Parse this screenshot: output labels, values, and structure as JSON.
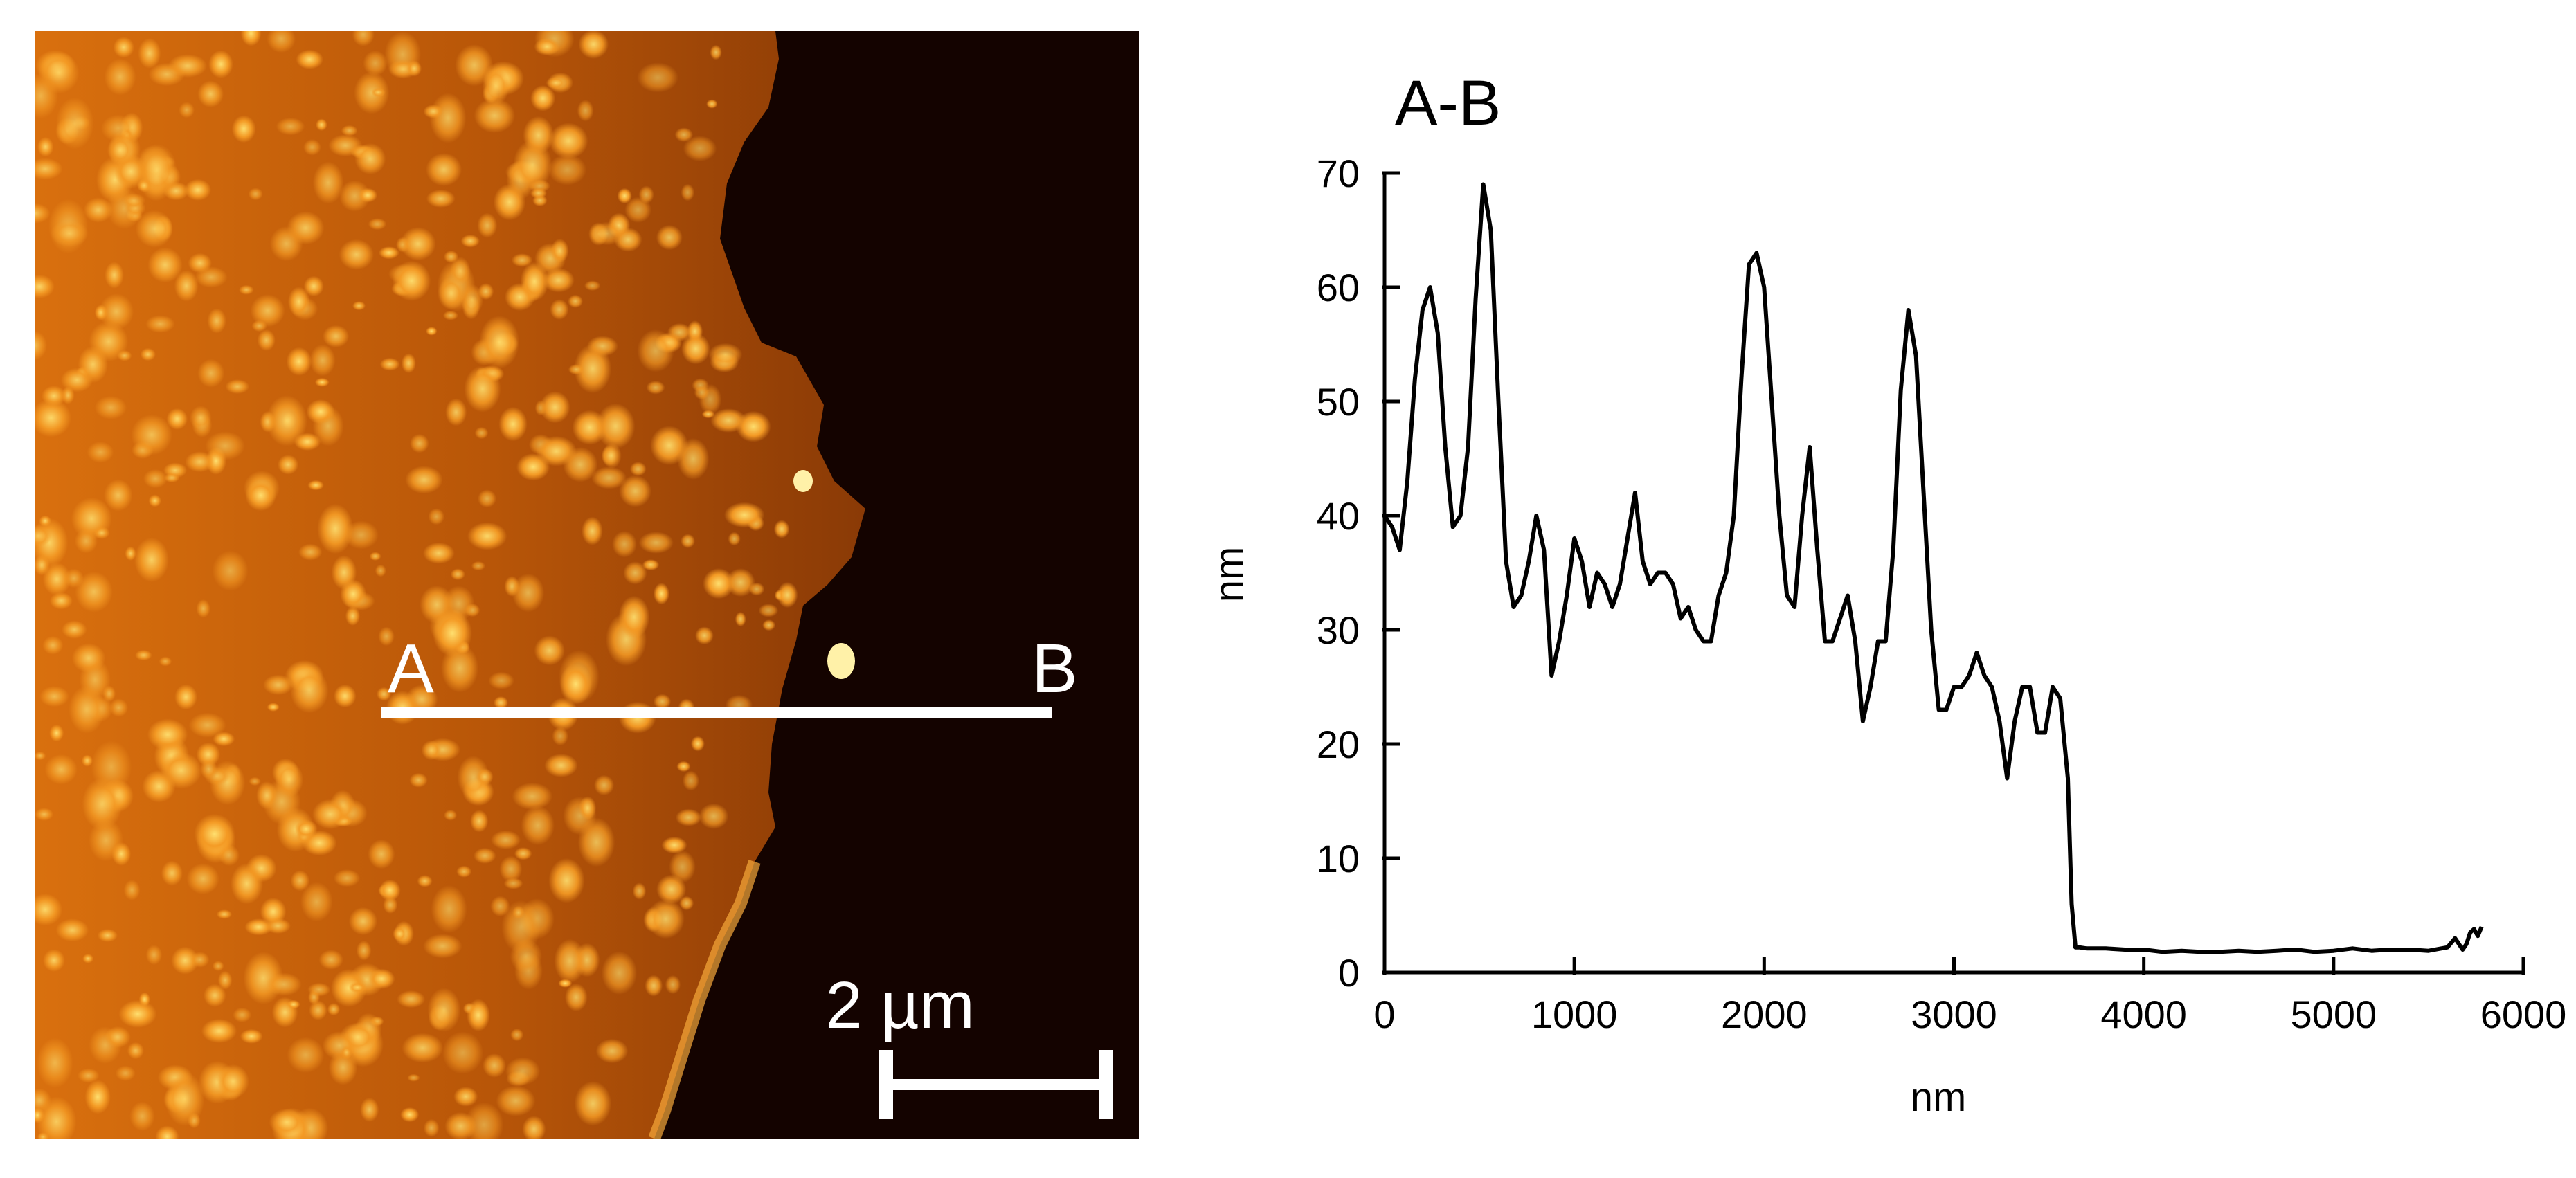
{
  "afm_image": {
    "label_a": "A",
    "label_b": "B",
    "scale_bar_label": "2 µm",
    "colors": {
      "substrate": "#140300",
      "film": "#b85608",
      "bright": "#fff1a8",
      "line": "#ffffff"
    }
  },
  "chart_data": {
    "type": "line",
    "title": "A-B",
    "xlabel": "nm",
    "ylabel": "nm",
    "xlim": [
      0,
      6000
    ],
    "ylim": [
      0,
      70
    ],
    "xticks": [
      0,
      1000,
      2000,
      3000,
      4000,
      5000,
      6000
    ],
    "yticks": [
      0,
      10,
      20,
      30,
      40,
      50,
      60,
      70
    ],
    "grid": false,
    "series": [
      {
        "color": "#000000",
        "x": [
          0,
          40,
          80,
          120,
          160,
          200,
          240,
          280,
          320,
          360,
          400,
          440,
          480,
          520,
          560,
          600,
          640,
          680,
          720,
          760,
          800,
          840,
          880,
          920,
          960,
          1000,
          1040,
          1080,
          1120,
          1160,
          1200,
          1240,
          1280,
          1320,
          1360,
          1400,
          1440,
          1480,
          1520,
          1560,
          1600,
          1640,
          1680,
          1720,
          1760,
          1800,
          1840,
          1880,
          1920,
          1960,
          2000,
          2040,
          2080,
          2120,
          2160,
          2200,
          2240,
          2280,
          2320,
          2360,
          2400,
          2440,
          2480,
          2520,
          2560,
          2600,
          2640,
          2680,
          2720,
          2760,
          2800,
          2840,
          2880,
          2920,
          2960,
          3000,
          3040,
          3080,
          3120,
          3160,
          3200,
          3240,
          3280,
          3320,
          3360,
          3400,
          3440,
          3480,
          3520,
          3560,
          3600,
          3620,
          3640,
          3660,
          3700,
          3800,
          3900,
          4000,
          4100,
          4200,
          4300,
          4400,
          4500,
          4600,
          4700,
          4800,
          4900,
          5000,
          5100,
          5200,
          5300,
          5400,
          5500,
          5600,
          5640,
          5680,
          5700,
          5720,
          5740,
          5760,
          5780
        ],
        "y": [
          40,
          39,
          37,
          43,
          52,
          58,
          60,
          56,
          46,
          39,
          40,
          46,
          59,
          69,
          65,
          50,
          36,
          32,
          33,
          36,
          40,
          37,
          26,
          29,
          33,
          38,
          36,
          32,
          35,
          34,
          32,
          34,
          38,
          42,
          36,
          34,
          35,
          35,
          34,
          31,
          32,
          30,
          29,
          29,
          33,
          35,
          40,
          52,
          62,
          63,
          60,
          50,
          40,
          33,
          32,
          40,
          46,
          37,
          29,
          29,
          31,
          33,
          29,
          22,
          25,
          29,
          29,
          37,
          51,
          58,
          54,
          42,
          30,
          23,
          23,
          25,
          25,
          26,
          28,
          26,
          25,
          22,
          17,
          22,
          25,
          25,
          21,
          21,
          25,
          24,
          17,
          6,
          2.2,
          2.2,
          2.1,
          2.1,
          2,
          2,
          1.8,
          1.9,
          1.8,
          1.8,
          1.9,
          1.8,
          1.9,
          2,
          1.8,
          1.9,
          2.1,
          1.9,
          2,
          2,
          1.9,
          2.2,
          3,
          2,
          2.5,
          3.5,
          3.8,
          3.2,
          4
        ]
      }
    ]
  }
}
